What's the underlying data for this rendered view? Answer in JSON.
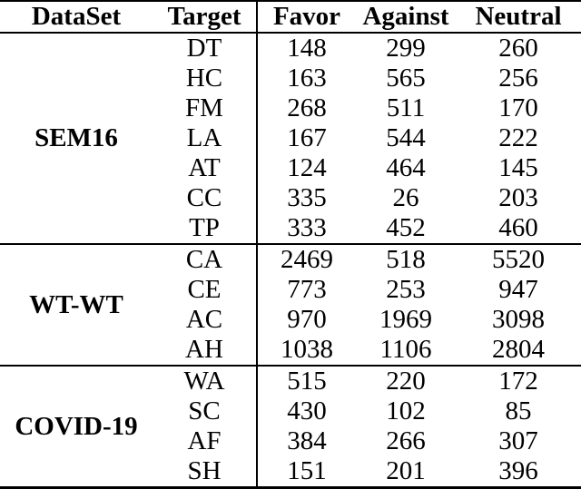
{
  "table": {
    "columns": [
      "DataSet",
      "Target",
      "Favor",
      "Against",
      "Neutral"
    ],
    "sections": [
      {
        "dataset": "SEM16",
        "rows": [
          {
            "target": "DT",
            "favor": "148",
            "against": "299",
            "neutral": "260"
          },
          {
            "target": "HC",
            "favor": "163",
            "against": "565",
            "neutral": "256"
          },
          {
            "target": "FM",
            "favor": "268",
            "against": "511",
            "neutral": "170"
          },
          {
            "target": "LA",
            "favor": "167",
            "against": "544",
            "neutral": "222"
          },
          {
            "target": "AT",
            "favor": "124",
            "against": "464",
            "neutral": "145"
          },
          {
            "target": "CC",
            "favor": "335",
            "against": "26",
            "neutral": "203"
          },
          {
            "target": "TP",
            "favor": "333",
            "against": "452",
            "neutral": "460"
          }
        ]
      },
      {
        "dataset": "WT-WT",
        "rows": [
          {
            "target": "CA",
            "favor": "2469",
            "against": "518",
            "neutral": "5520"
          },
          {
            "target": "CE",
            "favor": "773",
            "against": "253",
            "neutral": "947"
          },
          {
            "target": "AC",
            "favor": "970",
            "against": "1969",
            "neutral": "3098"
          },
          {
            "target": "AH",
            "favor": "1038",
            "against": "1106",
            "neutral": "2804"
          }
        ]
      },
      {
        "dataset": "COVID-19",
        "rows": [
          {
            "target": "WA",
            "favor": "515",
            "against": "220",
            "neutral": "172"
          },
          {
            "target": "SC",
            "favor": "430",
            "against": "102",
            "neutral": "85"
          },
          {
            "target": "AF",
            "favor": "384",
            "against": "266",
            "neutral": "307"
          },
          {
            "target": "SH",
            "favor": "151",
            "against": "201",
            "neutral": "396"
          }
        ]
      }
    ]
  }
}
